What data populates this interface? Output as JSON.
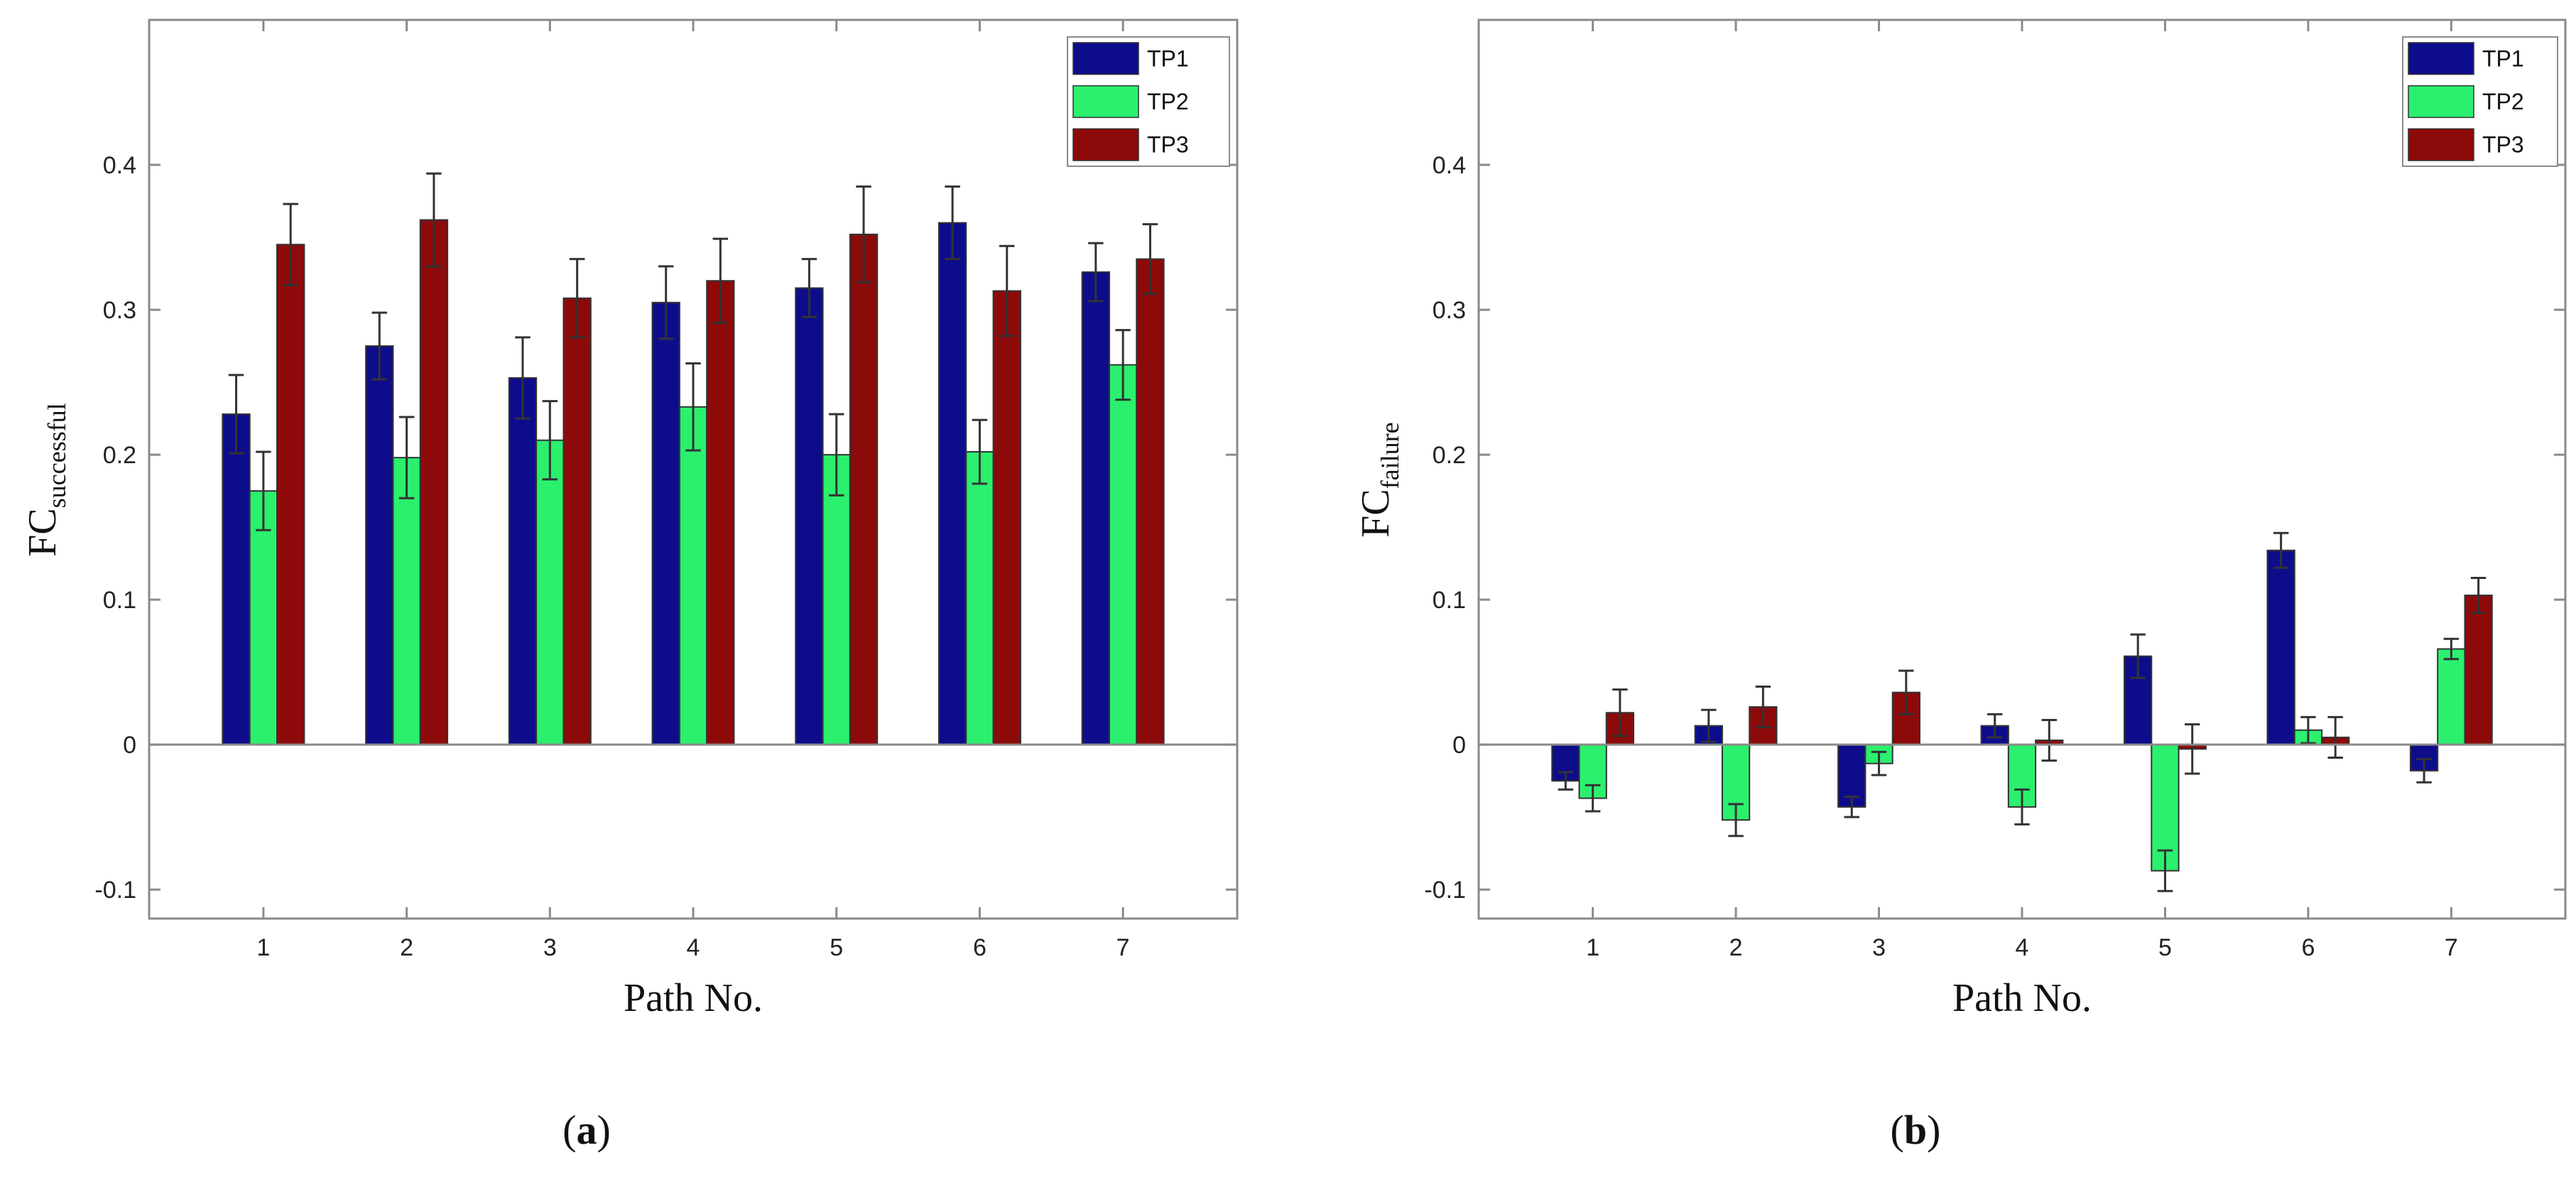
{
  "panels": {
    "a": {
      "label_open": "(",
      "label_letter": "a",
      "label_close": ")"
    },
    "b": {
      "label_open": "(",
      "label_letter": "b",
      "label_close": ")"
    }
  },
  "chart_data": [
    {
      "type": "bar",
      "xlabel": "Path No.",
      "ylabel_main": "FC",
      "ylabel_sub": "successful",
      "categories": [
        "1",
        "2",
        "3",
        "4",
        "5",
        "6",
        "7"
      ],
      "ylim": [
        -0.12,
        0.5
      ],
      "yticks": [
        -0.1,
        0,
        0.1,
        0.2,
        0.3,
        0.4
      ],
      "ytick_labels": [
        "-0.1",
        "0",
        "0.1",
        "0.2",
        "0.3",
        "0.4"
      ],
      "grid": false,
      "legend_position": "top-right",
      "series": [
        {
          "name": "TP1",
          "color": "#0d0d8c",
          "values": [
            0.228,
            0.275,
            0.253,
            0.305,
            0.315,
            0.36,
            0.326
          ],
          "errors": [
            0.027,
            0.023,
            0.028,
            0.025,
            0.02,
            0.025,
            0.02
          ]
        },
        {
          "name": "TP2",
          "color": "#2bf06e",
          "values": [
            0.175,
            0.198,
            0.21,
            0.233,
            0.2,
            0.202,
            0.262
          ],
          "errors": [
            0.027,
            0.028,
            0.027,
            0.03,
            0.028,
            0.022,
            0.024
          ]
        },
        {
          "name": "TP3",
          "color": "#8c0a0a",
          "values": [
            0.345,
            0.362,
            0.308,
            0.32,
            0.352,
            0.313,
            0.335
          ],
          "errors": [
            0.028,
            0.032,
            0.027,
            0.029,
            0.033,
            0.031,
            0.024
          ]
        }
      ]
    },
    {
      "type": "bar",
      "xlabel": "Path No.",
      "ylabel_main": "FC",
      "ylabel_sub": "failure",
      "categories": [
        "1",
        "2",
        "3",
        "4",
        "5",
        "6",
        "7"
      ],
      "ylim": [
        -0.12,
        0.5
      ],
      "yticks": [
        -0.1,
        0,
        0.1,
        0.2,
        0.3,
        0.4
      ],
      "ytick_labels": [
        "-0.1",
        "0",
        "0.1",
        "0.2",
        "0.3",
        "0.4"
      ],
      "grid": false,
      "legend_position": "top-right",
      "series": [
        {
          "name": "TP1",
          "color": "#0d0d8c",
          "values": [
            -0.025,
            0.013,
            -0.043,
            0.013,
            0.061,
            0.134,
            -0.018
          ],
          "errors": [
            0.006,
            0.011,
            0.007,
            0.008,
            0.015,
            0.012,
            0.008
          ]
        },
        {
          "name": "TP2",
          "color": "#2bf06e",
          "values": [
            -0.037,
            -0.052,
            -0.013,
            -0.043,
            -0.087,
            0.01,
            0.066
          ],
          "errors": [
            0.009,
            0.011,
            0.008,
            0.012,
            0.014,
            0.009,
            0.007
          ]
        },
        {
          "name": "TP3",
          "color": "#8c0a0a",
          "values": [
            0.022,
            0.026,
            0.036,
            0.003,
            -0.003,
            0.005,
            0.103
          ],
          "errors": [
            0.016,
            0.014,
            0.015,
            0.014,
            0.017,
            0.014,
            0.012
          ]
        }
      ]
    }
  ]
}
